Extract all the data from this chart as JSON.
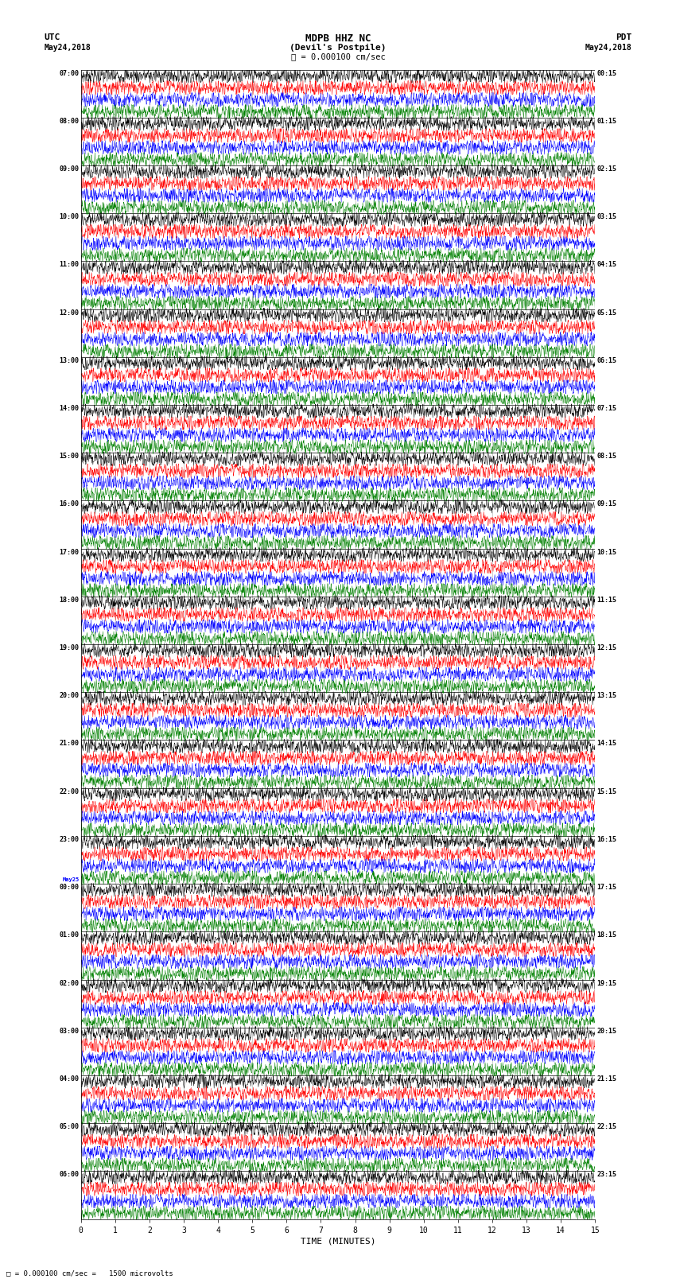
{
  "title_line1": "MDPB HHZ NC",
  "title_line2": "(Devil's Postpile)",
  "scale_label": "= 0.000100 cm/sec",
  "left_header_line1": "UTC",
  "left_header_line2": "May24,2018",
  "right_header_line1": "PDT",
  "right_header_line2": "May24,2018",
  "bottom_label": "TIME (MINUTES)",
  "bottom_note": "= 0.000100 cm/sec =   1500 microvolts",
  "xlabel_ticks": [
    0,
    1,
    2,
    3,
    4,
    5,
    6,
    7,
    8,
    9,
    10,
    11,
    12,
    13,
    14,
    15
  ],
  "left_times": [
    "07:00",
    "08:00",
    "09:00",
    "10:00",
    "11:00",
    "12:00",
    "13:00",
    "14:00",
    "15:00",
    "16:00",
    "17:00",
    "18:00",
    "19:00",
    "20:00",
    "21:00",
    "22:00",
    "23:00",
    "00:00",
    "01:00",
    "02:00",
    "03:00",
    "04:00",
    "05:00",
    "06:00"
  ],
  "may25_row": 17,
  "right_times": [
    "00:15",
    "01:15",
    "02:15",
    "03:15",
    "04:15",
    "05:15",
    "06:15",
    "07:15",
    "08:15",
    "09:15",
    "10:15",
    "11:15",
    "12:15",
    "13:15",
    "14:15",
    "15:15",
    "16:15",
    "17:15",
    "18:15",
    "19:15",
    "20:15",
    "21:15",
    "22:15",
    "23:15"
  ],
  "trace_colors": [
    "black",
    "red",
    "blue",
    "green"
  ],
  "num_hour_rows": 24,
  "traces_per_hour": 4,
  "bg_color": "white",
  "noise_seed": 42,
  "trace_amplitude": 0.32,
  "trace_linewidth": 0.35,
  "grid_color": "#aaaaaa",
  "grid_linewidth": 0.4
}
